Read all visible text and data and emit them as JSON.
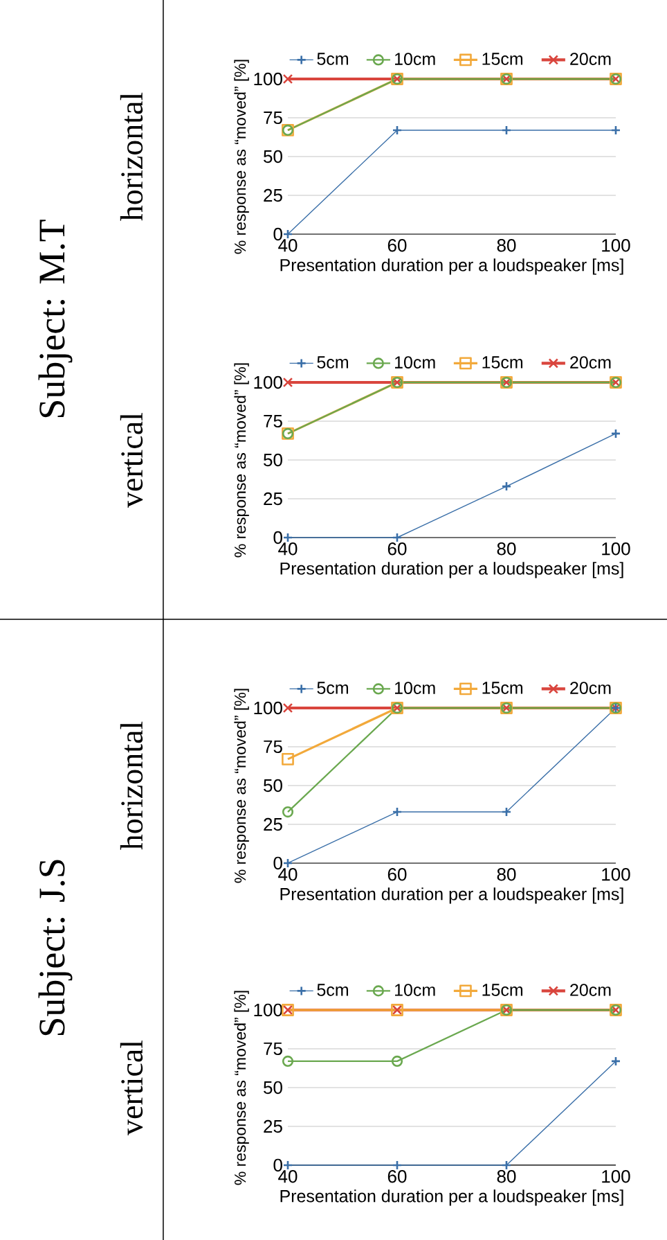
{
  "chart_data": [
    {
      "type": "line",
      "title": "horizontal",
      "annotations": [
        "Subject: M.T"
      ],
      "xlabel": "Presentation duration per a loudspeaker [ms]",
      "ylabel": "% response as “moved” [%]",
      "x": [
        40,
        60,
        80,
        100
      ],
      "xlim": [
        40,
        100
      ],
      "ylim": [
        0,
        100
      ],
      "xticks": [
        40,
        60,
        80,
        100
      ],
      "yticks": [
        0,
        25,
        50,
        75,
        100
      ],
      "grid": "y",
      "legend": "top",
      "series": [
        {
          "name": "5cm",
          "color": "#3a6fa8",
          "marker": "plus",
          "values": [
            0,
            67,
            67,
            67
          ]
        },
        {
          "name": "10cm",
          "color": "#6aa84f",
          "marker": "circle",
          "values": [
            67,
            100,
            100,
            100
          ]
        },
        {
          "name": "15cm",
          "color": "#f2a93b",
          "marker": "square",
          "values": [
            67,
            100,
            100,
            100
          ]
        },
        {
          "name": "20cm",
          "color": "#d9453d",
          "marker": "cross",
          "values": [
            100,
            100,
            100,
            100
          ]
        }
      ]
    },
    {
      "type": "line",
      "title": "vertical",
      "xlabel": "Presentation duration per a loudspeaker [ms]",
      "ylabel": "% response as “moved” [%]",
      "x": [
        40,
        60,
        80,
        100
      ],
      "xlim": [
        40,
        100
      ],
      "ylim": [
        0,
        100
      ],
      "xticks": [
        40,
        60,
        80,
        100
      ],
      "yticks": [
        0,
        25,
        50,
        75,
        100
      ],
      "grid": "y",
      "legend": "top",
      "series": [
        {
          "name": "5cm",
          "color": "#3a6fa8",
          "marker": "plus",
          "values": [
            0,
            0,
            33,
            67
          ]
        },
        {
          "name": "10cm",
          "color": "#6aa84f",
          "marker": "circle",
          "values": [
            67,
            100,
            100,
            100
          ]
        },
        {
          "name": "15cm",
          "color": "#f2a93b",
          "marker": "square",
          "values": [
            67,
            100,
            100,
            100
          ]
        },
        {
          "name": "20cm",
          "color": "#d9453d",
          "marker": "cross",
          "values": [
            100,
            100,
            100,
            100
          ]
        }
      ]
    },
    {
      "type": "line",
      "title": "horizontal",
      "annotations": [
        "Subject: J.S"
      ],
      "xlabel": "Presentation duration per a loudspeaker [ms]",
      "ylabel": "% response as “moved” [%]",
      "x": [
        40,
        60,
        80,
        100
      ],
      "xlim": [
        40,
        100
      ],
      "ylim": [
        0,
        100
      ],
      "xticks": [
        40,
        60,
        80,
        100
      ],
      "yticks": [
        0,
        25,
        50,
        75,
        100
      ],
      "grid": "y",
      "legend": "top",
      "series": [
        {
          "name": "5cm",
          "color": "#3a6fa8",
          "marker": "plus",
          "values": [
            0,
            33,
            33,
            100
          ]
        },
        {
          "name": "10cm",
          "color": "#6aa84f",
          "marker": "circle",
          "values": [
            33,
            100,
            100,
            100
          ]
        },
        {
          "name": "15cm",
          "color": "#f2a93b",
          "marker": "square",
          "values": [
            67,
            100,
            100,
            100
          ]
        },
        {
          "name": "20cm",
          "color": "#d9453d",
          "marker": "cross",
          "values": [
            100,
            100,
            100,
            100
          ]
        }
      ]
    },
    {
      "type": "line",
      "title": "vertical",
      "xlabel": "Presentation duration per a loudspeaker [ms]",
      "ylabel": "% response as “moved” [%]",
      "x": [
        40,
        60,
        80,
        100
      ],
      "xlim": [
        40,
        100
      ],
      "ylim": [
        0,
        100
      ],
      "xticks": [
        40,
        60,
        80,
        100
      ],
      "yticks": [
        0,
        25,
        50,
        75,
        100
      ],
      "grid": "y",
      "legend": "top",
      "series": [
        {
          "name": "5cm",
          "color": "#3a6fa8",
          "marker": "plus",
          "values": [
            0,
            0,
            0,
            67
          ]
        },
        {
          "name": "10cm",
          "color": "#6aa84f",
          "marker": "circle",
          "values": [
            67,
            67,
            100,
            100
          ]
        },
        {
          "name": "15cm",
          "color": "#f2a93b",
          "marker": "square",
          "values": [
            100,
            100,
            100,
            100
          ]
        },
        {
          "name": "20cm",
          "color": "#d9453d",
          "marker": "cross",
          "values": [
            100,
            100,
            100,
            100
          ]
        }
      ]
    }
  ]
}
